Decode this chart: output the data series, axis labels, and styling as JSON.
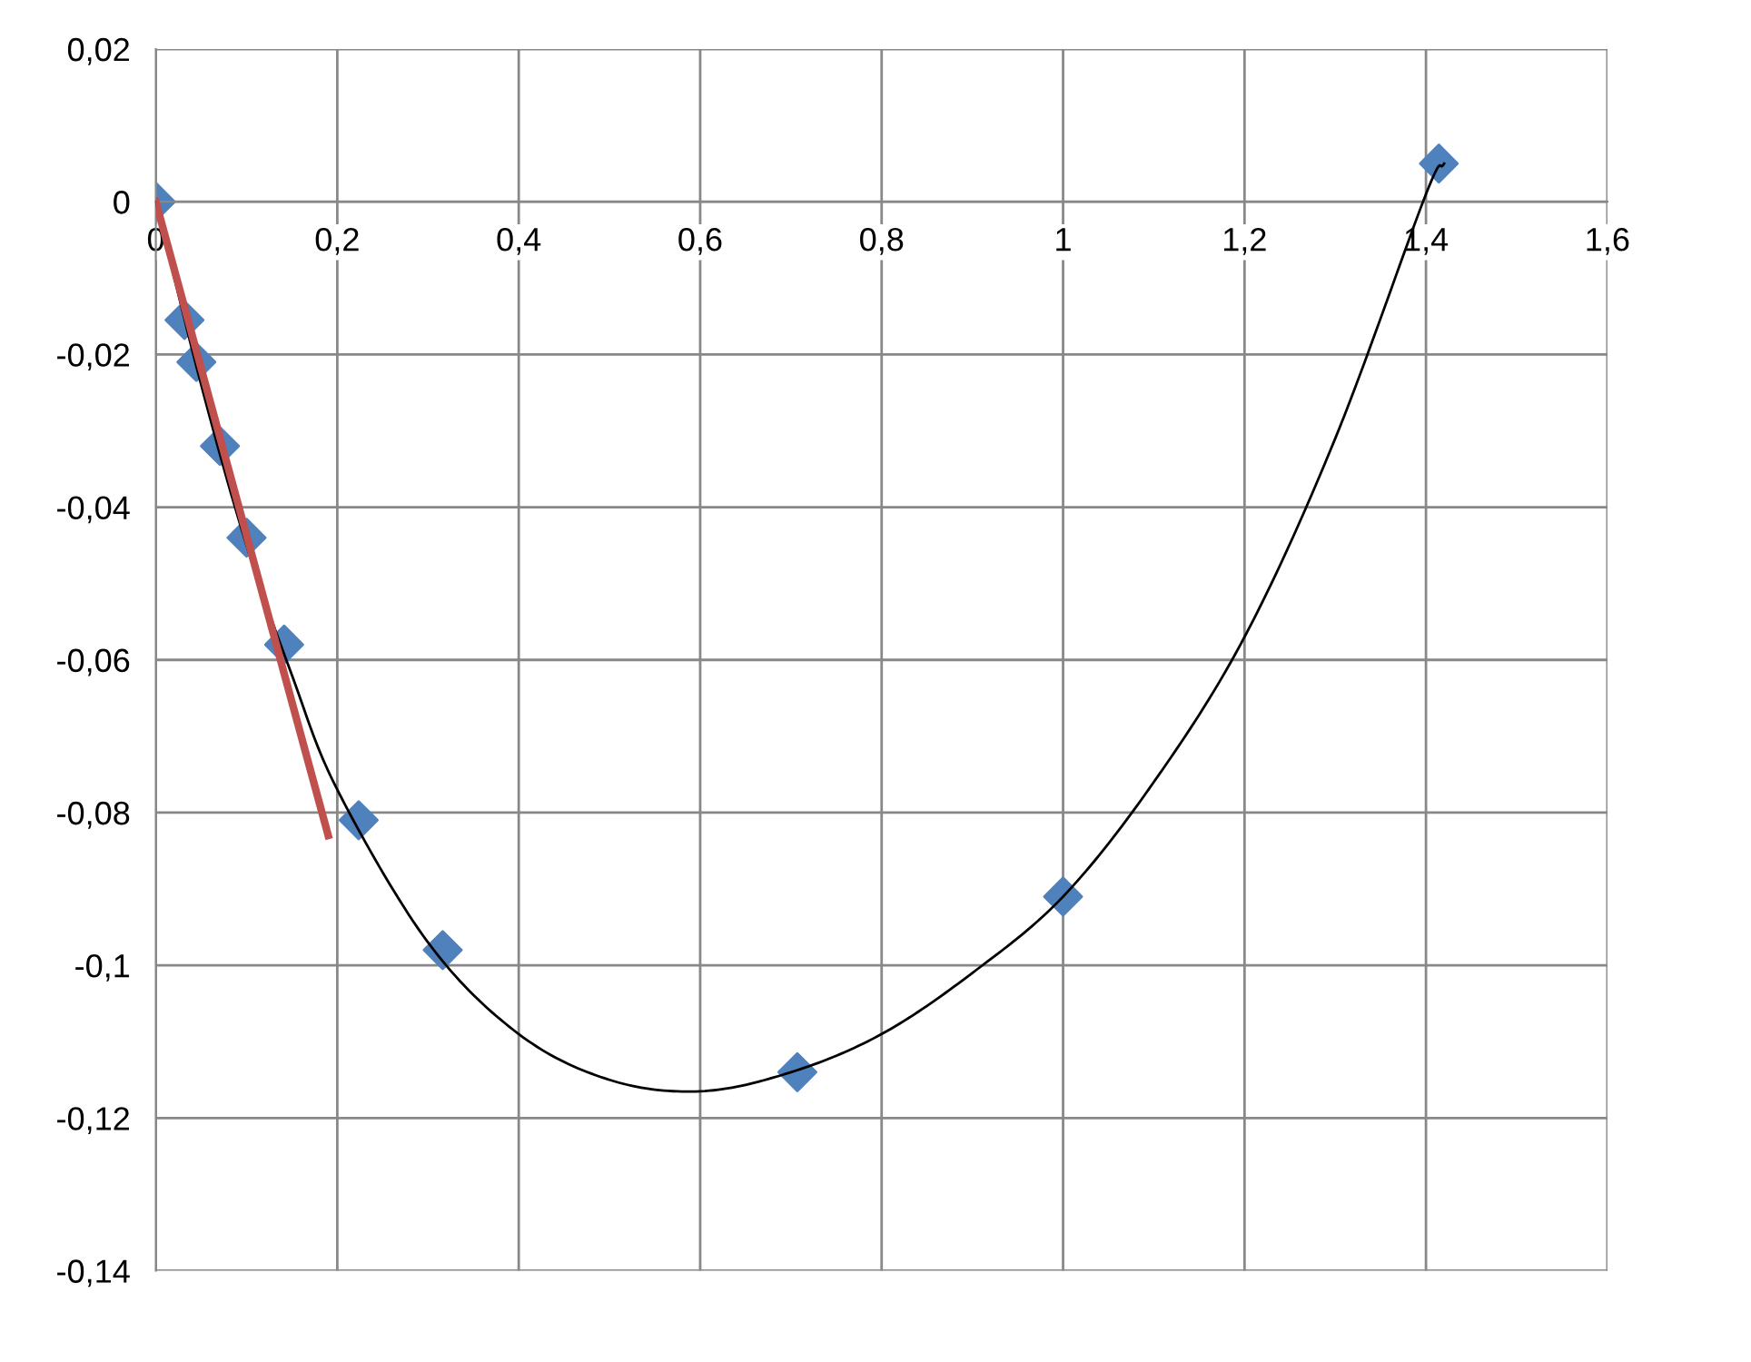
{
  "chart_data": {
    "type": "scatter",
    "marker": "diamond",
    "grid": true,
    "xlim": [
      0,
      1.6
    ],
    "ylim": [
      -0.14,
      0.02
    ],
    "xticks": [
      0,
      {
        "value": 0.2,
        "label": "0,2"
      },
      {
        "value": 0.4,
        "label": "0,4"
      },
      {
        "value": 0.6,
        "label": "0,6"
      },
      {
        "value": 0.8,
        "label": "0,8"
      },
      1,
      {
        "value": 1.2,
        "label": "1,2"
      },
      {
        "value": 1.4,
        "label": "1,4"
      },
      {
        "value": 1.6,
        "label": "1,6"
      }
    ],
    "yticks": [
      {
        "value": -0.14,
        "label": "-0,14"
      },
      {
        "value": -0.12,
        "label": "-0,12"
      },
      {
        "value": -0.1,
        "label": "-0,1"
      },
      {
        "value": -0.08,
        "label": "-0,08"
      },
      {
        "value": -0.06,
        "label": "-0,06"
      },
      {
        "value": -0.04,
        "label": "-0,04"
      },
      {
        "value": -0.02,
        "label": "-0,02"
      },
      0,
      {
        "value": 0.02,
        "label": "0,02"
      }
    ],
    "series": [
      {
        "type": "line",
        "color": "#000000",
        "marker": "none",
        "x": [
          0,
          0.05,
          0.1,
          0.15,
          0.2,
          0.3,
          0.4,
          0.5,
          0.6,
          0.7,
          0.8,
          0.9,
          1.0,
          1.1,
          1.2,
          1.3,
          1.4,
          1.42
        ],
        "values": [
          0,
          -0.024,
          -0.045,
          -0.062,
          -0.077,
          -0.097,
          -0.109,
          -0.115,
          -0.1165,
          -0.114,
          -0.109,
          -0.101,
          -0.091,
          -0.076,
          -0.057,
          -0.031,
          0.001,
          0.005
        ]
      },
      {
        "type": "line",
        "color": "#c0504d",
        "marker": "none",
        "x": [
          0,
          0.19
        ],
        "values": [
          0,
          -0.083
        ]
      },
      {
        "color": "#4f81bd",
        "x": [
          0,
          0.0316,
          0.0447,
          0.0707,
          0.1,
          0.1414,
          0.2236,
          0.3162,
          0.7071,
          1.0,
          1.4142
        ],
        "values": [
          0,
          -0.0155,
          -0.021,
          -0.032,
          -0.044,
          -0.058,
          -0.081,
          -0.098,
          -0.114,
          -0.091,
          0.005
        ]
      }
    ]
  }
}
